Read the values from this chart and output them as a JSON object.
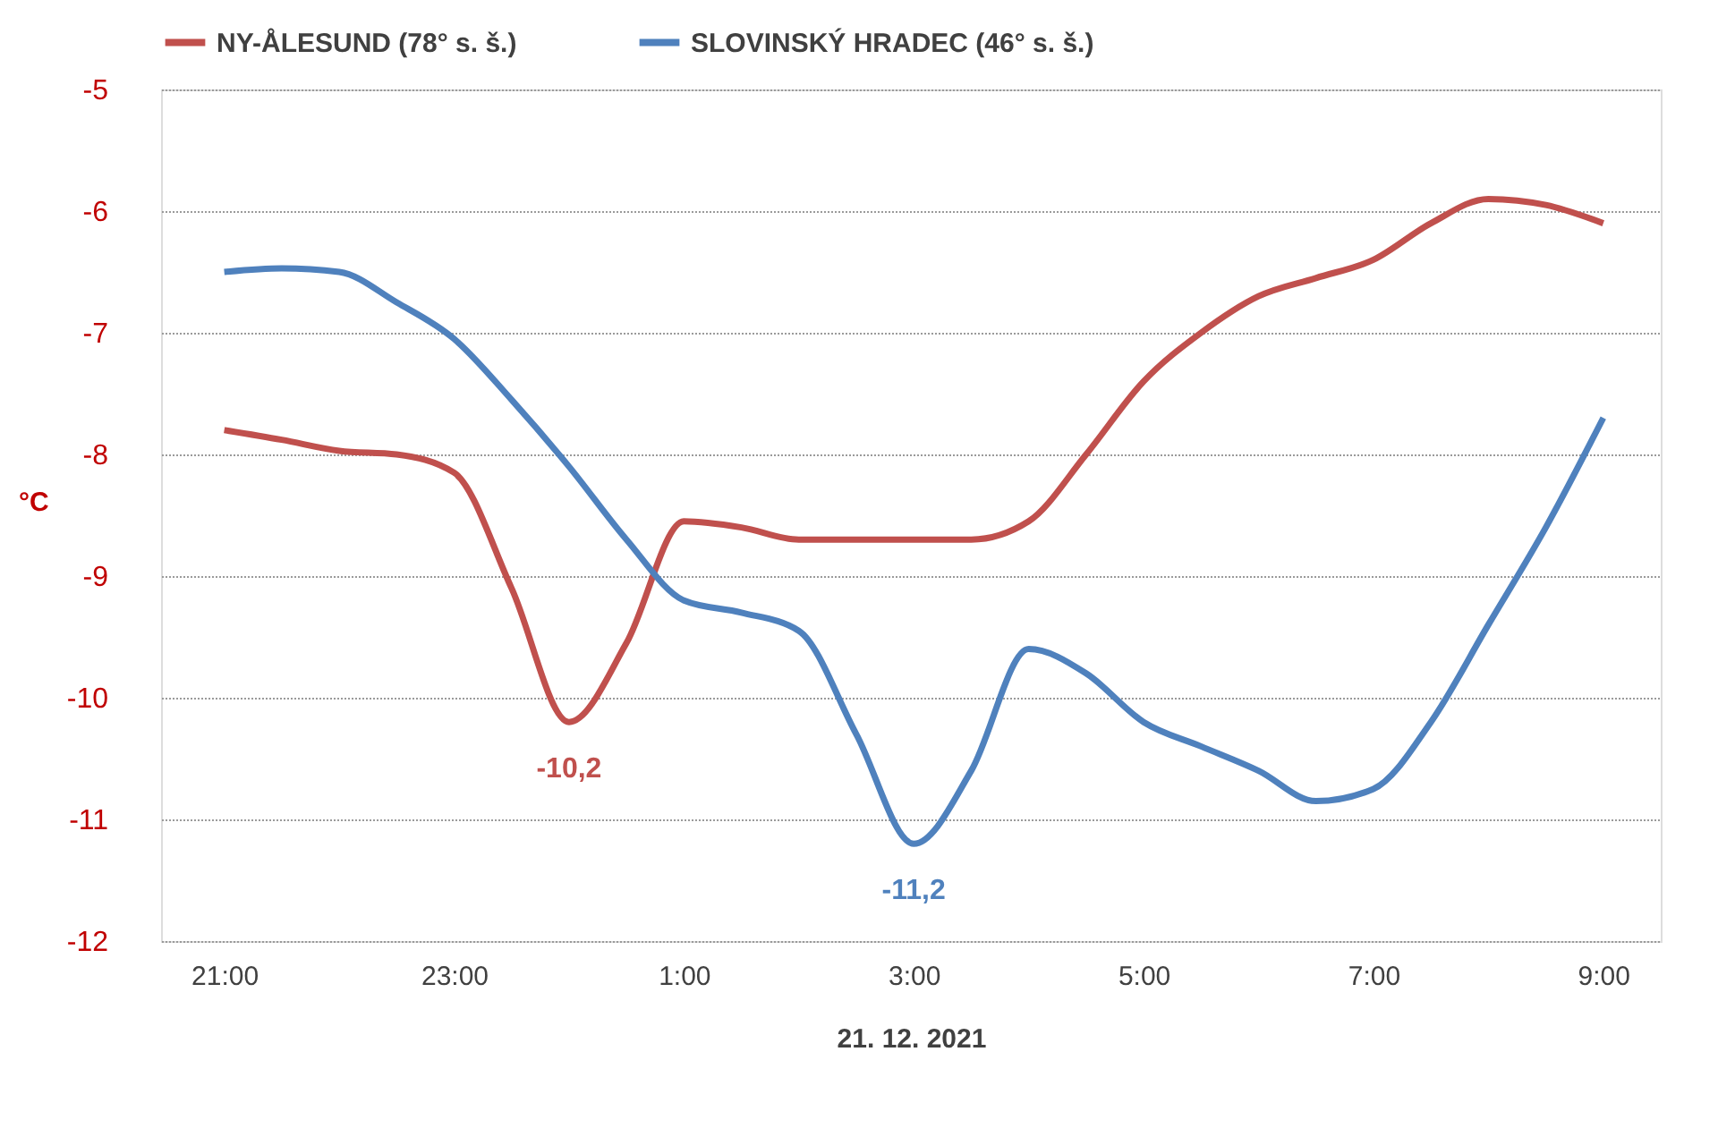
{
  "chart_data": {
    "type": "line",
    "categories": [
      "21:00",
      null,
      null,
      null,
      "23:00",
      null,
      null,
      null,
      "1:00",
      null,
      null,
      null,
      "3:00",
      null,
      null,
      null,
      "5:00",
      null,
      null,
      null,
      "7:00",
      null,
      null,
      null,
      "9:00"
    ],
    "series": [
      {
        "name": "NY-ÅLESUND (78° s. š.)",
        "color": "#c0504d",
        "values": [
          -7.8,
          -7.88,
          -7.97,
          -8.0,
          -8.15,
          -9.1,
          -10.2,
          -9.55,
          -8.55,
          -8.6,
          -8.7,
          -8.7,
          -8.7,
          -8.7,
          -8.55,
          -8.0,
          -7.4,
          -7.0,
          -6.7,
          -6.55,
          -6.4,
          -6.1,
          -5.9,
          -5.95,
          -6.1
        ]
      },
      {
        "name": "SLOVINSKÝ HRADEC (46° s. š.)",
        "color": "#4f81bd",
        "values": [
          -6.5,
          -6.47,
          -6.5,
          -6.75,
          -7.05,
          -7.55,
          -8.1,
          -8.7,
          -9.2,
          -9.3,
          -9.45,
          -10.3,
          -11.2,
          -10.6,
          -9.6,
          -9.8,
          -10.2,
          -10.4,
          -10.6,
          -10.85,
          -10.75,
          -10.2,
          -9.4,
          -8.6,
          -7.7
        ]
      }
    ],
    "ylim": [
      -12,
      -5
    ],
    "yticks": [
      -12,
      -11,
      -10,
      -9,
      -8,
      -7,
      -6,
      -5
    ],
    "xlabel": "21. 12. 2021",
    "ylabel": "°C",
    "grid": "y",
    "legend": "top",
    "marker": "none",
    "line_style": "solid",
    "annotations": [
      {
        "text": "-10,2",
        "y": -10.2
      },
      {
        "text": "-11,2",
        "y": -11.2
      }
    ]
  }
}
